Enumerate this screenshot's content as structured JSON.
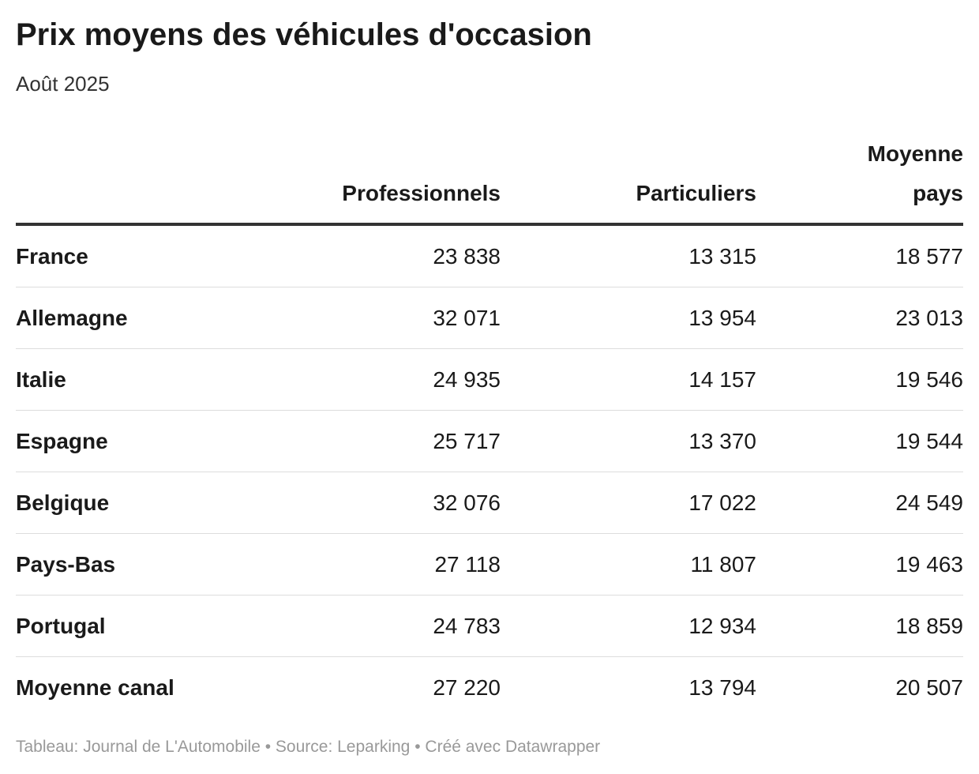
{
  "title": "Prix moyens des véhicules d'occasion",
  "subtitle": "Août 2025",
  "footer": {
    "credit": "Tableau: Journal de L'Automobile",
    "source": "Source: Leparking",
    "made_with": "Créé avec Datawrapper",
    "separator": " • "
  },
  "chart_data": {
    "type": "table",
    "title": "Prix moyens des véhicules d'occasion",
    "subtitle": "Août 2025",
    "columns": [
      "",
      "Professionnels",
      "Particuliers",
      "Moyenne pays"
    ],
    "rows": [
      [
        "France",
        "23 838",
        "13 315",
        "18 577"
      ],
      [
        "Allemagne",
        "32 071",
        "13 954",
        "23 013"
      ],
      [
        "Italie",
        "24 935",
        "14 157",
        "19 546"
      ],
      [
        "Espagne",
        "25 717",
        "13 370",
        "19 544"
      ],
      [
        "Belgique",
        "32 076",
        "17 022",
        "24 549"
      ],
      [
        "Pays-Bas",
        "27 118",
        "11 807",
        "19 463"
      ],
      [
        "Portugal",
        "24 783",
        "12 934",
        "18 859"
      ],
      [
        "Moyenne canal",
        "27 220",
        "13 794",
        "20 507"
      ]
    ]
  }
}
